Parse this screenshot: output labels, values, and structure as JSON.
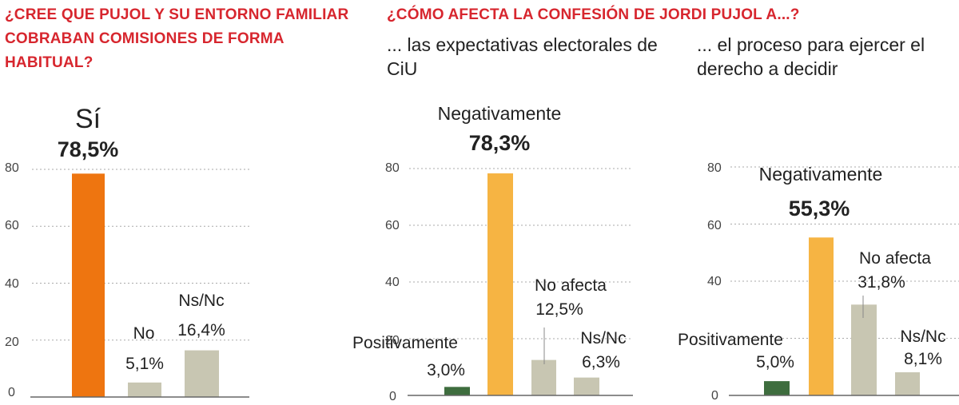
{
  "titles": {
    "q1": "¿CREE QUE PUJOL Y SU ENTORNO FAMILIAR COBRABAN COMISIONES DE FORMA HABITUAL?",
    "q2": "¿CÓMO AFECTA LA CONFESIÓN DE JORDI PUJOL A...?"
  },
  "subtitles": {
    "a": "... las expectativas electorales de CiU",
    "b": "... el proceso para ejercer el derecho a decidir"
  },
  "colors": {
    "orange": "#ee7510",
    "yellow": "#f6b443",
    "grey": "#c8c6b2",
    "green": "#3e6d3e",
    "gridline": "#aaaaaa",
    "title_red": "#d7262e"
  },
  "chart_data": [
    {
      "type": "bar",
      "title": "¿CREE QUE PUJOL Y SU ENTORNO FAMILIAR COBRABAN COMISIONES DE FORMA HABITUAL?",
      "categories": [
        "Sí",
        "No",
        "Ns/Nc"
      ],
      "values": [
        78.5,
        5.1,
        16.4
      ],
      "value_labels": [
        "78,5%",
        "5,1%",
        "16,4%"
      ],
      "colors": [
        "orange",
        "grey",
        "grey"
      ],
      "y_ticks": [
        "80",
        "60",
        "40",
        "20",
        "0"
      ],
      "ylim": [
        0,
        80
      ],
      "grid": true
    },
    {
      "type": "bar",
      "title": "... las expectativas electorales de CiU",
      "categories": [
        "Positivamente",
        "Negativamente",
        "No afecta",
        "Ns/Nc"
      ],
      "values": [
        3.0,
        78.3,
        12.5,
        6.3
      ],
      "value_labels": [
        "3,0%",
        "78,3%",
        "12,5%",
        "6,3%"
      ],
      "colors": [
        "green",
        "yellow",
        "grey",
        "grey"
      ],
      "y_ticks": [
        "80",
        "60",
        "40",
        "20",
        "0"
      ],
      "ylim": [
        0,
        80
      ],
      "grid": true
    },
    {
      "type": "bar",
      "title": "... el proceso para ejercer el derecho a decidir",
      "categories": [
        "Positivamente",
        "Negativamente",
        "No afecta",
        "Ns/Nc"
      ],
      "values": [
        5.0,
        55.3,
        31.8,
        8.1
      ],
      "value_labels": [
        "5,0%",
        "55,3%",
        "31,8%",
        "8,1%"
      ],
      "colors": [
        "green",
        "yellow",
        "grey",
        "grey"
      ],
      "y_ticks": [
        "80",
        "60",
        "40",
        "0"
      ],
      "ylim": [
        0,
        80
      ],
      "grid": true
    }
  ]
}
